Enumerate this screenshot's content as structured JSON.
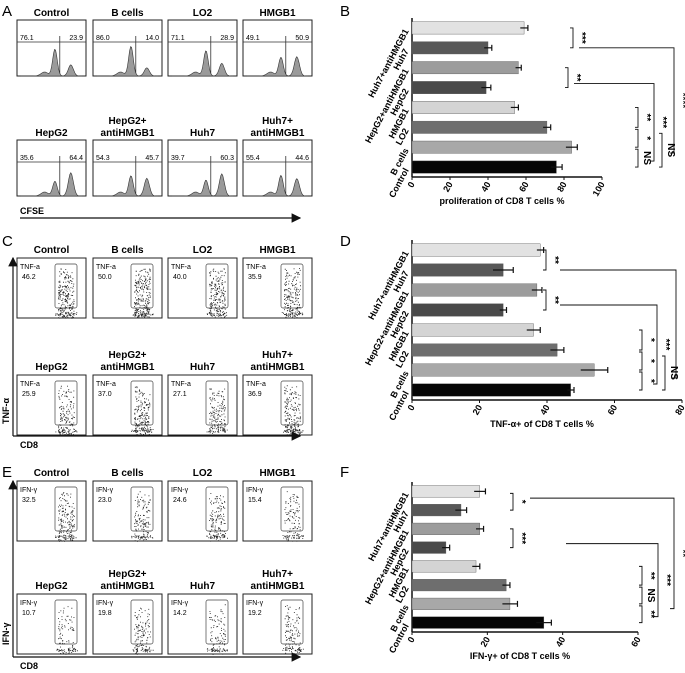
{
  "panels": {
    "A": {
      "letter": "A",
      "axis_label": "CFSE",
      "plots": [
        {
          "title": "Control",
          "left": "76.1",
          "right": "23.9"
        },
        {
          "title": "B cells",
          "left": "86.0",
          "right": "14.0"
        },
        {
          "title": "LO2",
          "left": "71.1",
          "right": "28.9"
        },
        {
          "title": "HMGB1",
          "left": "49.1",
          "right": "50.9"
        },
        {
          "title": "HepG2",
          "left": "35.6",
          "right": "64.4"
        },
        {
          "title": "antiHMGB1",
          "title_top": "HepG2+",
          "left": "54.3",
          "right": "45.7"
        },
        {
          "title": "Huh7",
          "left": "39.7",
          "right": "60.3"
        },
        {
          "title": "antiHMGB1",
          "title_top": "Huh7+",
          "left": "55.4",
          "right": "44.6"
        }
      ]
    },
    "C": {
      "letter": "C",
      "x_label": "CD8",
      "y_label": "TNF-α",
      "plots": [
        {
          "title": "Control",
          "marker": "TNF-a",
          "value": "46.2"
        },
        {
          "title": "B cells",
          "marker": "TNF-a",
          "value": "50.0"
        },
        {
          "title": "LO2",
          "marker": "TNF-a",
          "value": "40.0"
        },
        {
          "title": "HMGB1",
          "marker": "TNF-a",
          "value": "35.9"
        },
        {
          "title": "HepG2",
          "marker": "TNF-a",
          "value": "25.9"
        },
        {
          "title": "antiHMGB1",
          "title_top": "HepG2+",
          "marker": "TNF-a",
          "value": "37.0"
        },
        {
          "title": "Huh7",
          "marker": "TNF-a",
          "value": "27.1"
        },
        {
          "title": "antiHMGB1",
          "title_top": "Huh7+",
          "marker": "TNF-a",
          "value": "36.9"
        }
      ]
    },
    "E": {
      "letter": "E",
      "x_label": "CD8",
      "y_label": "IFN-γ",
      "plots": [
        {
          "title": "Control",
          "marker": "IFN-γ",
          "value": "32.5"
        },
        {
          "title": "B cells",
          "marker": "IFN-γ",
          "value": "23.0"
        },
        {
          "title": "LO2",
          "marker": "IFN-γ",
          "value": "24.6"
        },
        {
          "title": "HMGB1",
          "marker": "IFN-γ",
          "value": "15.4"
        },
        {
          "title": "HepG2",
          "marker": "IFN-γ",
          "value": "10.7"
        },
        {
          "title": "antiHMGB1",
          "title_top": "HepG2+",
          "marker": "IFN-γ",
          "value": "19.8"
        },
        {
          "title": "Huh7",
          "marker": "IFN-γ",
          "value": "14.2"
        },
        {
          "title": "antiHMGB1",
          "title_top": "Huh7+",
          "marker": "IFN-γ",
          "value": "19.2"
        }
      ]
    }
  },
  "colors": {
    "bars": [
      "#e2e2e2",
      "#585858",
      "#9c9c9c",
      "#4a4a4a",
      "#d4d4d4",
      "#6e6e6e",
      "#a8a8a8",
      "#050505"
    ],
    "hist": "#9a9a9a",
    "axis": "#111111"
  },
  "chart_data": [
    {
      "type": "bar",
      "panel": "B",
      "orientation": "horizontal",
      "categories": [
        "Huh7+antiHMGB1",
        "Huh7",
        "HepG2+antiHMGB1",
        "HepG2",
        "HMGB1",
        "LO2",
        "B cells",
        "Control"
      ],
      "values": [
        59,
        40,
        56,
        39,
        54,
        71,
        84,
        76
      ],
      "errors": [
        2,
        2,
        1.5,
        2.5,
        2,
        2,
        3,
        3
      ],
      "xlabel": "proliferation of CD8 T cells %",
      "xlim": [
        0,
        100
      ],
      "xticks": [
        0,
        20,
        40,
        60,
        80,
        100
      ],
      "annotations": [
        {
          "text": "***",
          "from": 0,
          "to": 1
        },
        {
          "text": "**",
          "from": 2,
          "to": 3
        },
        {
          "text": "**",
          "from": 4,
          "to": 5
        },
        {
          "text": "*",
          "from": 5,
          "to": 6
        },
        {
          "text": "NS",
          "from": 6,
          "to": 7
        },
        {
          "text": "***",
          "from": 4,
          "to": 7
        },
        {
          "text": "NS",
          "from": 5,
          "to": 7
        },
        {
          "text": "****",
          "from": 1,
          "to": 7
        }
      ]
    },
    {
      "type": "bar",
      "panel": "D",
      "orientation": "horizontal",
      "categories": [
        "Huh7+antiHMGB1",
        "Huh7",
        "HepG2+antiHMGB1",
        "HepG2",
        "HMGB1",
        "LO2",
        "B cells",
        "Control"
      ],
      "values": [
        38,
        27,
        37,
        27,
        36,
        43,
        54,
        47
      ],
      "errors": [
        1,
        3,
        1.5,
        1,
        2,
        2,
        4,
        1
      ],
      "xlabel": "TNF-α+ of CD8 T cells %",
      "xlim": [
        0,
        80
      ],
      "xticks": [
        0,
        20,
        40,
        60,
        80
      ],
      "annotations": [
        {
          "text": "**",
          "from": 0,
          "to": 1
        },
        {
          "text": "**",
          "from": 2,
          "to": 3
        },
        {
          "text": "*",
          "from": 4,
          "to": 5
        },
        {
          "text": "*",
          "from": 5,
          "to": 6
        },
        {
          "text": "*",
          "from": 6,
          "to": 7
        },
        {
          "text": "***",
          "from": 3,
          "to": 7
        },
        {
          "text": "NS",
          "from": 5,
          "to": 7
        },
        {
          "text": "**",
          "from": 1,
          "to": 7
        }
      ]
    },
    {
      "type": "bar",
      "panel": "F",
      "orientation": "horizontal",
      "categories": [
        "Huh7+antiHMGB1",
        "Huh7",
        "HepG2+antiHMGB1",
        "HepG2",
        "HMGB1",
        "LO2",
        "B cells",
        "Control"
      ],
      "values": [
        18,
        13,
        18,
        9,
        17,
        25,
        26,
        35
      ],
      "errors": [
        1.5,
        1.5,
        1,
        1,
        1,
        1,
        2,
        2
      ],
      "xlabel": "IFN-γ+ of CD8 T cells %",
      "xlim": [
        0,
        60
      ],
      "xticks": [
        0,
        20,
        40,
        60
      ],
      "annotations": [
        {
          "text": "*",
          "from": 0,
          "to": 1
        },
        {
          "text": "***",
          "from": 2,
          "to": 3
        },
        {
          "text": "**",
          "from": 4,
          "to": 5
        },
        {
          "text": "NS",
          "from": 5,
          "to": 6
        },
        {
          "text": "**",
          "from": 6,
          "to": 7
        },
        {
          "text": "***",
          "from": 3,
          "to": 7
        },
        {
          "text": "**",
          "from": 1,
          "to": 7
        }
      ]
    }
  ]
}
